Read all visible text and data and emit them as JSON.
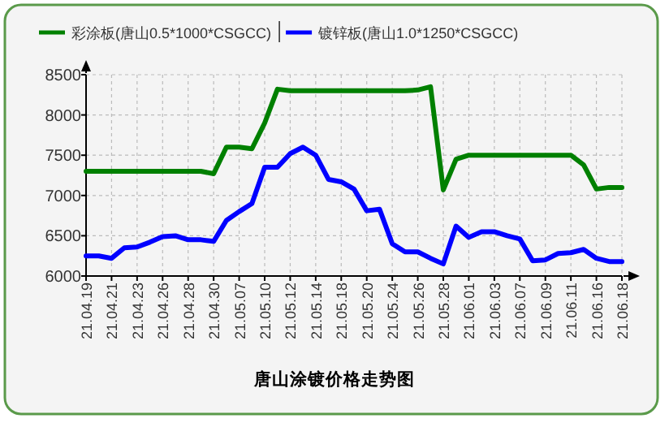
{
  "chart_data": {
    "type": "line",
    "title": "唐山涂镀价格走势图",
    "categories": [
      "21.04.19",
      null,
      "21.04.21",
      null,
      "21.04.23",
      null,
      "21.04.26",
      null,
      "21.04.28",
      null,
      "21.04.30",
      null,
      "21.05.07",
      null,
      "21.05.10",
      null,
      "21.05.12",
      null,
      "21.05.14",
      null,
      "21.05.18",
      null,
      "21.05.20",
      null,
      "21.05.24",
      null,
      "21.05.26",
      null,
      "21.05.28",
      null,
      "21.06.01",
      null,
      "21.06.03",
      null,
      "21.06.07",
      null,
      "21.06.09",
      null,
      "21.06.11",
      null,
      "21.06.16",
      null,
      "21.06.18"
    ],
    "series": [
      {
        "name": "彩涂板(唐山0.5*1000*CSGCC)",
        "color": "#008000",
        "values": [
          7300,
          7300,
          7300,
          7300,
          7300,
          7300,
          7300,
          7300,
          7300,
          7300,
          7270,
          7600,
          7600,
          7580,
          7900,
          8320,
          8300,
          8300,
          8300,
          8300,
          8300,
          8300,
          8300,
          8300,
          8300,
          8300,
          8310,
          8350,
          7070,
          7450,
          7500,
          7500,
          7500,
          7500,
          7500,
          7500,
          7500,
          7500,
          7500,
          7380,
          7080,
          7100,
          7100
        ]
      },
      {
        "name": "镀锌板(唐山1.0*1250*CSGCC)",
        "color": "#0000ff",
        "values": [
          6250,
          6250,
          6220,
          6350,
          6360,
          6420,
          6490,
          6500,
          6450,
          6450,
          6430,
          6690,
          6800,
          6900,
          7350,
          7350,
          7520,
          7600,
          7500,
          7200,
          7170,
          7080,
          6810,
          6830,
          6400,
          6300,
          6300,
          6220,
          6150,
          6620,
          6480,
          6550,
          6550,
          6500,
          6460,
          6190,
          6200,
          6280,
          6290,
          6330,
          6220,
          6180,
          6180
        ]
      }
    ],
    "ylim": [
      6000,
      8500
    ],
    "yticks": [
      6000,
      6500,
      7000,
      7500,
      8000,
      8500
    ],
    "grid": true,
    "legend": "top",
    "line_style": "solid"
  }
}
